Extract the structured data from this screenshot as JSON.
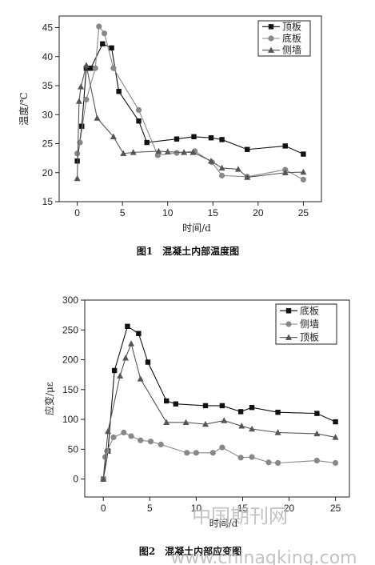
{
  "charts": [
    {
      "type": "line",
      "caption": "图1　混凝土内部温度图",
      "xlabel": "时间/d",
      "ylabel": "温度/℃",
      "xlim": [
        -2,
        27
      ],
      "ylim": [
        15,
        47
      ],
      "xticks": [
        0,
        5,
        10,
        15,
        20,
        25
      ],
      "yticks": [
        15,
        20,
        25,
        30,
        35,
        40,
        45
      ],
      "series": [
        {
          "name": "顶板",
          "marker": "square",
          "color": "#111111",
          "x": [
            0,
            0.5,
            1.0,
            1.5,
            2.8,
            3.8,
            4.6,
            6.8,
            7.7,
            11.0,
            12.9,
            14.8,
            16.0,
            18.8,
            23.0,
            25.0
          ],
          "y": [
            22.0,
            28.0,
            38.0,
            38.0,
            42.2,
            41.5,
            34.0,
            28.9,
            25.2,
            25.8,
            26.2,
            26.0,
            25.7,
            24.0,
            24.6,
            23.2
          ]
        },
        {
          "name": "底板",
          "marker": "circle",
          "color": "#888888",
          "x": [
            0,
            0.3,
            1.0,
            2.0,
            2.4,
            3.0,
            4.0,
            6.8,
            8.9,
            11.0,
            13.0,
            14.9,
            16.0,
            18.8,
            23.0,
            25.0
          ],
          "y": [
            23.3,
            25.2,
            32.6,
            38.0,
            45.2,
            44.0,
            38.0,
            30.8,
            23.0,
            23.4,
            23.7,
            21.8,
            19.5,
            19.3,
            20.5,
            18.8
          ]
        },
        {
          "name": "侧墙",
          "marker": "triangle",
          "color": "#555555",
          "x": [
            0,
            0.2,
            0.4,
            1.0,
            2.2,
            4.0,
            5.1,
            6.2,
            9.0,
            10.0,
            11.8,
            12.8,
            14.8,
            16.0,
            17.8,
            18.8,
            23.0,
            25.0
          ],
          "y": [
            19.0,
            32.3,
            34.8,
            38.5,
            29.4,
            26.2,
            23.3,
            23.5,
            23.7,
            23.6,
            23.5,
            23.5,
            22.0,
            20.8,
            20.6,
            19.2,
            20.0,
            20.1
          ]
        }
      ],
      "legend_position": "top-right"
    },
    {
      "type": "line",
      "caption": "图2　混凝土内部应变图",
      "xlabel": "时间/d",
      "ylabel": "应变/με",
      "xlim": [
        -2,
        26.5
      ],
      "ylim": [
        -30,
        300
      ],
      "xticks": [
        0,
        5,
        10,
        15,
        20,
        25
      ],
      "yticks": [
        0,
        50,
        100,
        150,
        200,
        250,
        300
      ],
      "series": [
        {
          "name": "底板",
          "marker": "square",
          "color": "#111111",
          "x": [
            0,
            0.5,
            1.2,
            2.6,
            3.8,
            4.8,
            6.8,
            7.8,
            11.0,
            12.8,
            14.8,
            16.0,
            18.8,
            23.0,
            25.0
          ],
          "y": [
            0,
            47,
            182,
            256,
            244,
            196,
            131,
            126,
            123,
            123,
            113,
            120,
            112,
            110,
            96
          ]
        },
        {
          "name": "侧墙",
          "marker": "circle",
          "color": "#888888",
          "x": [
            0,
            0.2,
            0.4,
            1.1,
            2.2,
            3.0,
            4.0,
            5.1,
            6.2,
            9.0,
            10.0,
            11.8,
            12.8,
            14.8,
            16.0,
            17.8,
            18.8,
            23.0,
            25.0
          ],
          "y": [
            0,
            37,
            47,
            70,
            78,
            72,
            65,
            63,
            58,
            44,
            44,
            44,
            53,
            36,
            37,
            28,
            27,
            31,
            27
          ]
        },
        {
          "name": "顶板",
          "marker": "triangle",
          "color": "#555555",
          "x": [
            0,
            0.5,
            1.8,
            2.4,
            3.0,
            4.0,
            6.8,
            8.9,
            11.0,
            13.0,
            14.9,
            16.0,
            18.8,
            23.0,
            25.0
          ],
          "y": [
            0,
            80,
            173,
            203,
            227,
            168,
            95,
            95,
            92,
            98,
            89,
            84,
            78,
            76,
            70
          ]
        }
      ],
      "legend_position": "top-right"
    }
  ],
  "watermark": {
    "line1": "中国期刊网",
    "line2": "www.chinaqking.com"
  }
}
